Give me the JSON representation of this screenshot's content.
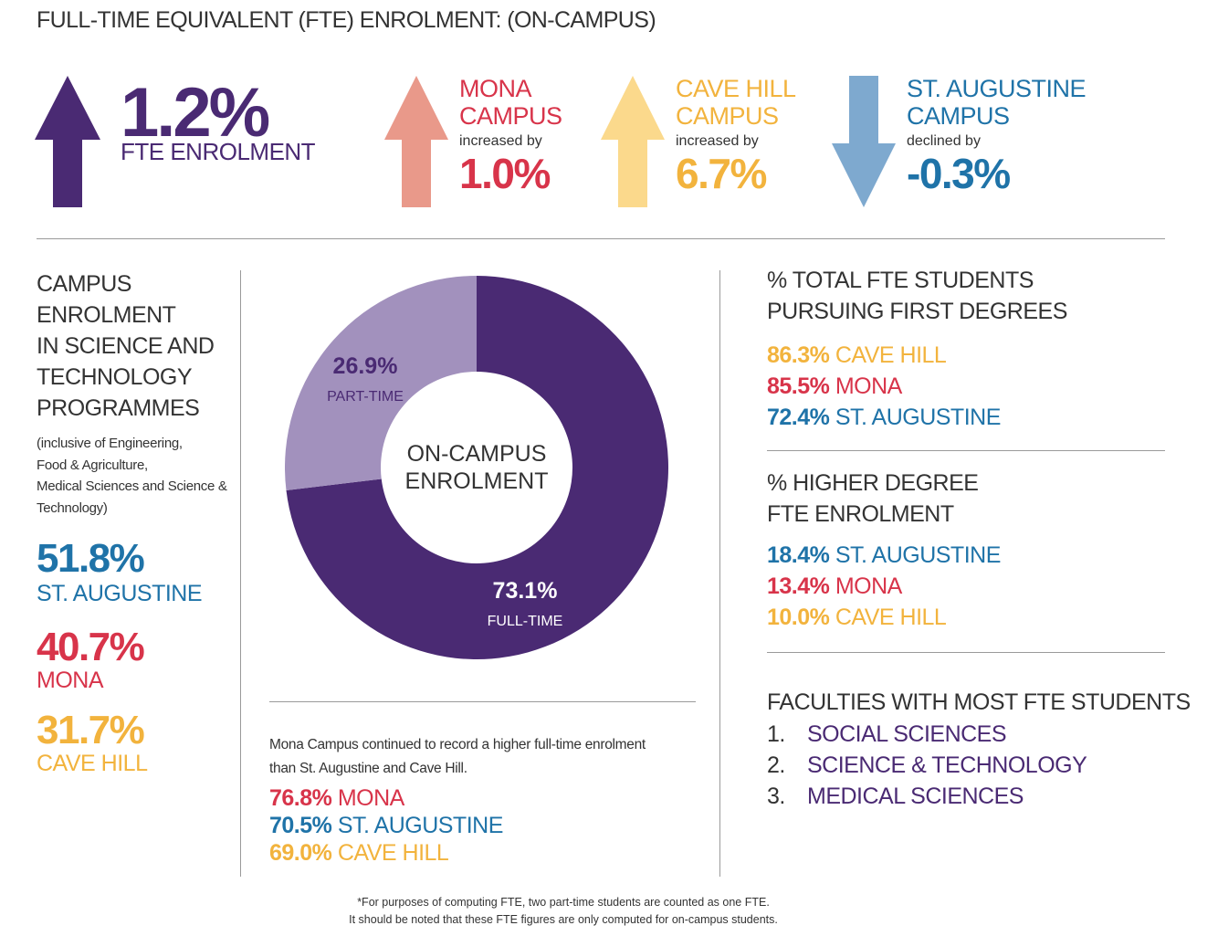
{
  "title": "FULL-TIME EQUIVALENT (FTE) ENROLMENT: (ON-CAMPUS)",
  "colors": {
    "purple": "#4a2a73",
    "lavender": "#a291bd",
    "salmon": "#e9998a",
    "pale_yellow": "#fbd98c",
    "steel_blue": "#7ea9cf",
    "red": "#d8344a",
    "yellow": "#f2b33d",
    "blue": "#1f73a8"
  },
  "summary": {
    "value": "1.2%",
    "label": "FTE ENROLMENT",
    "arrow": "up-arrow-icon"
  },
  "campuses": [
    {
      "name_line1": "MONA",
      "name_line2": "CAMPUS",
      "change_text": "increased by",
      "value": "1.0%",
      "arrow": "up-arrow-icon"
    },
    {
      "name_line1": "CAVE HILL",
      "name_line2": "CAMPUS",
      "change_text": "increased by",
      "value": "6.7%",
      "arrow": "up-arrow-icon"
    },
    {
      "name_line1": "ST. AUGUSTINE",
      "name_line2": "CAMPUS",
      "change_text": "declined by",
      "value": "-0.3%",
      "arrow": "down-arrow-icon"
    }
  ],
  "science_tech": {
    "heading": [
      "CAMPUS",
      "ENROLMENT",
      "IN SCIENCE AND",
      "TECHNOLOGY",
      "PROGRAMMES"
    ],
    "note": [
      "(inclusive of Engineering,",
      "Food & Agriculture,",
      "Medical Sciences and Science &",
      "Technology)"
    ],
    "items": [
      {
        "value": "51.8%",
        "label": "ST. AUGUSTINE"
      },
      {
        "value": "40.7%",
        "label": "MONA"
      },
      {
        "value": "31.7%",
        "label": "CAVE HILL"
      }
    ]
  },
  "chart_data": {
    "type": "pie",
    "title": "ON-CAMPUS ENROLMENT",
    "center_label_line1": "ON-CAMPUS",
    "center_label_line2": "ENROLMENT",
    "slices": [
      {
        "label": "FULL-TIME",
        "value": 73.1,
        "display": "73.1%"
      },
      {
        "label": "PART-TIME",
        "value": 26.9,
        "display": "26.9%"
      }
    ]
  },
  "fulltime_note": {
    "text_line1": "Mona Campus continued to record a higher full-time enrolment",
    "text_line2": "than St. Augustine and Cave Hill.",
    "items": [
      {
        "value": "76.8%",
        "label": "MONA"
      },
      {
        "value": "70.5%",
        "label": "ST. AUGUSTINE"
      },
      {
        "value": "69.0%",
        "label": "CAVE HILL"
      }
    ]
  },
  "first_degrees": {
    "heading_line1": "% TOTAL FTE STUDENTS",
    "heading_line2": "PURSUING FIRST DEGREES",
    "items": [
      {
        "value": "86.3%",
        "label": "CAVE HILL"
      },
      {
        "value": "85.5%",
        "label": "MONA"
      },
      {
        "value": "72.4%",
        "label": "ST. AUGUSTINE"
      }
    ]
  },
  "higher_degree": {
    "heading_line1": "% HIGHER DEGREE",
    "heading_line2": "FTE ENROLMENT",
    "items": [
      {
        "value": "18.4%",
        "label": "ST. AUGUSTINE"
      },
      {
        "value": "13.4%",
        "label": "MONA"
      },
      {
        "value": "10.0%",
        "label": "CAVE HILL"
      }
    ]
  },
  "faculties": {
    "heading": "FACULTIES WITH MOST FTE STUDENTS",
    "items": [
      {
        "num": "1.",
        "name": "SOCIAL SCIENCES"
      },
      {
        "num": "2.",
        "name": "SCIENCE & TECHNOLOGY"
      },
      {
        "num": "3.",
        "name": "MEDICAL SCIENCES"
      }
    ]
  },
  "footnote": {
    "line1": "*For purposes of computing FTE, two part-time students are counted as one FTE.",
    "line2": "It should be noted that these FTE figures are only computed for on-campus students."
  }
}
